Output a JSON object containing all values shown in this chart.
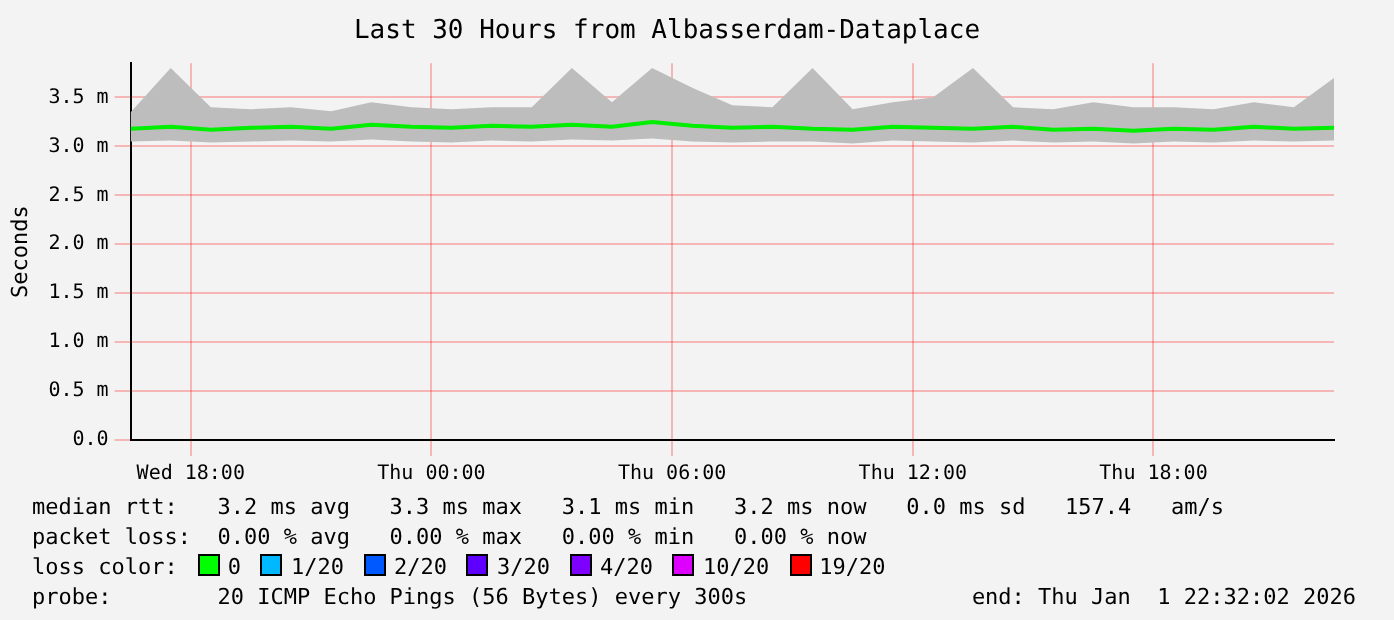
{
  "chart_data": {
    "type": "line",
    "title": "Last 30 Hours from Albasserdam-Dataplace",
    "ylabel": "Seconds",
    "x": [
      "2025-12-31T16:30",
      "2025-12-31T17:30",
      "2025-12-31T18:30",
      "2025-12-31T19:30",
      "2025-12-31T20:30",
      "2025-12-31T21:30",
      "2025-12-31T22:30",
      "2025-12-31T23:30",
      "2026-01-01T00:30",
      "2026-01-01T01:30",
      "2026-01-01T02:30",
      "2026-01-01T03:30",
      "2026-01-01T04:30",
      "2026-01-01T05:30",
      "2026-01-01T06:30",
      "2026-01-01T07:30",
      "2026-01-01T08:30",
      "2026-01-01T09:30",
      "2026-01-01T10:30",
      "2026-01-01T11:30",
      "2026-01-01T12:30",
      "2026-01-01T13:30",
      "2026-01-01T14:30",
      "2026-01-01T15:30",
      "2026-01-01T16:30",
      "2026-01-01T17:30",
      "2026-01-01T18:30",
      "2026-01-01T19:30",
      "2026-01-01T20:30",
      "2026-01-01T21:30",
      "2026-01-01T22:30"
    ],
    "series": [
      {
        "color": "#00ee00",
        "values": [
          3.18,
          3.2,
          3.17,
          3.19,
          3.2,
          3.18,
          3.22,
          3.2,
          3.19,
          3.21,
          3.2,
          3.22,
          3.2,
          3.25,
          3.21,
          3.19,
          3.2,
          3.18,
          3.17,
          3.2,
          3.19,
          3.18,
          3.2,
          3.17,
          3.18,
          3.16,
          3.18,
          3.17,
          3.2,
          3.18,
          3.19
        ],
        "lower": [
          3.05,
          3.06,
          3.04,
          3.05,
          3.06,
          3.05,
          3.07,
          3.05,
          3.04,
          3.06,
          3.05,
          3.07,
          3.06,
          3.08,
          3.05,
          3.04,
          3.05,
          3.05,
          3.03,
          3.06,
          3.05,
          3.04,
          3.06,
          3.04,
          3.05,
          3.03,
          3.05,
          3.04,
          3.06,
          3.05,
          3.06
        ],
        "upper": [
          3.35,
          3.8,
          3.4,
          3.38,
          3.4,
          3.36,
          3.45,
          3.4,
          3.38,
          3.4,
          3.4,
          3.8,
          3.45,
          3.8,
          3.6,
          3.42,
          3.4,
          3.8,
          3.38,
          3.45,
          3.5,
          3.8,
          3.4,
          3.38,
          3.45,
          3.4,
          3.4,
          3.38,
          3.45,
          3.4,
          3.7
        ]
      }
    ],
    "xlim": [
      "2025-12-31T16:30",
      "2026-01-01T22:30"
    ],
    "xticks": [
      {
        "value": "2025-12-31T18:00",
        "label": "Wed 18:00"
      },
      {
        "value": "2026-01-01T00:00",
        "label": "Thu 00:00"
      },
      {
        "value": "2026-01-01T06:00",
        "label": "Thu 06:00"
      },
      {
        "value": "2026-01-01T12:00",
        "label": "Thu 12:00"
      },
      {
        "value": "2026-01-01T18:00",
        "label": "Thu 18:00"
      }
    ],
    "ylim": [
      0,
      3.85
    ],
    "yticks": [
      "0.0",
      {
        "value": 0.5,
        "label": "0.5 m"
      },
      {
        "value": 1,
        "label": "1.0 m"
      },
      {
        "value": 1.5,
        "label": "1.5 m"
      },
      {
        "value": 2,
        "label": "2.0 m"
      },
      {
        "value": 2.5,
        "label": "2.5 m"
      },
      {
        "value": 3,
        "label": "3.0 m"
      },
      {
        "value": 3.5,
        "label": "3.5 m"
      }
    ],
    "grid": true,
    "marker": "none",
    "line_style": "solid",
    "annotations": [
      "median rtt:   3.2 ms avg   3.3 ms max   3.1 ms min   3.2 ms now   0.0 ms sd   157.4   am/s",
      "packet loss:  0.00 % avg   0.00 % max   0.00 % min   0.00 % now",
      "loss color:",
      "0",
      "1/20",
      "2/20",
      "3/20",
      "4/20",
      "10/20",
      "19/20",
      "probe:        20 ICMP Echo Pings (56 Bytes) every 300s",
      "end: Thu Jan  1 22:32:02 2026"
    ]
  }
}
